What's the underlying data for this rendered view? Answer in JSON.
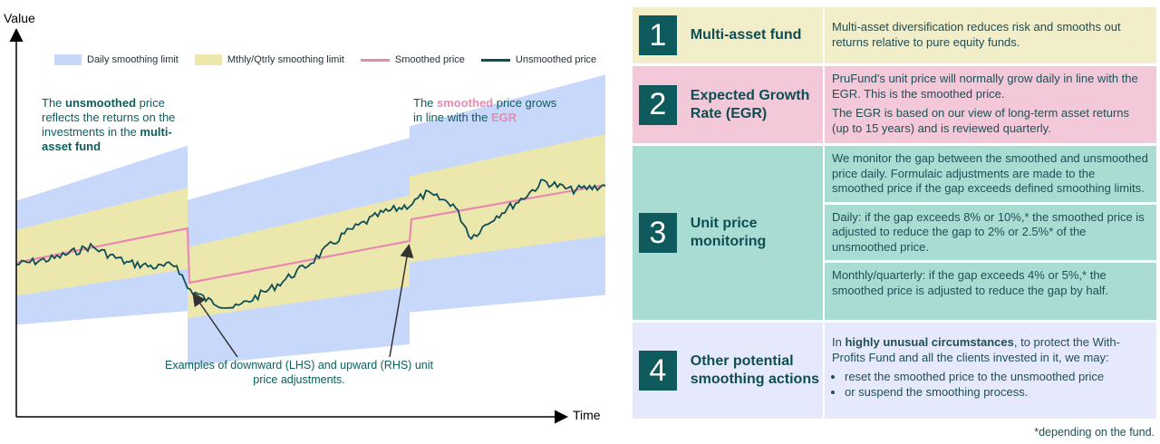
{
  "chart": {
    "y_axis_label": "Value",
    "x_axis_label": "Time",
    "legend": [
      {
        "label": "Daily smoothing limit",
        "color": "#c8d8fb",
        "kind": "band"
      },
      {
        "label": "Mthly/Qtrly smoothing limit",
        "color": "#ece7ad",
        "kind": "band"
      },
      {
        "label": "Smoothed price",
        "color": "#e889b0",
        "kind": "line"
      },
      {
        "label": "Unsmoothed price",
        "color": "#0d4f55",
        "kind": "line"
      }
    ],
    "annotation_left": {
      "pre": "The ",
      "bold": "unsmoothed",
      "mid": " price reflects the returns on the investments in the ",
      "bold2": "multi-asset fund"
    },
    "annotation_right": {
      "pre": "The ",
      "pink1": "smoothed",
      "mid": " price grows in line with the ",
      "pink2": "EGR"
    },
    "callout": "Examples of downward (LHS) and upward (RHS) unit price adjustments."
  },
  "rows": [
    {
      "number": "1",
      "title": "Multi-asset fund",
      "paragraphs": [
        "Multi-asset diversification reduces risk and smooths out returns relative to pure equity funds."
      ]
    },
    {
      "number": "2",
      "title": "Expected Growth Rate (EGR)",
      "paragraphs": [
        "PruFund's unit price will normally grow daily in line with the EGR. This is the smoothed price.",
        "The EGR is based on our view of long-term asset returns (up to 15 years) and is reviewed quarterly."
      ]
    },
    {
      "number": "3",
      "title": "Unit price monitoring",
      "paragraphs": [
        "We monitor the gap between the smoothed and unsmoothed price daily. Formulaic adjustments are made to the smoothed price if the gap exceeds defined smoothing limits.",
        "Daily: if the gap exceeds 8% or 10%,* the smoothed price is adjusted to reduce the gap to 2% or 2.5%* of the unsmoothed price.",
        "Monthly/quarterly: if the gap exceeds 4% or 5%,* the smoothed price is adjusted to reduce the gap by half."
      ]
    },
    {
      "number": "4",
      "title": "Other potential smoothing actions",
      "intro_pre": "In ",
      "intro_bold": "highly unusual circumstances",
      "intro_post": ", to protect the With-Profits Fund and all the clients invested in it, we may:",
      "bullets": [
        "reset the smoothed price to the unsmoothed price",
        "or suspend the smoothing process."
      ]
    }
  ],
  "footnote": "*depending on the fund."
}
